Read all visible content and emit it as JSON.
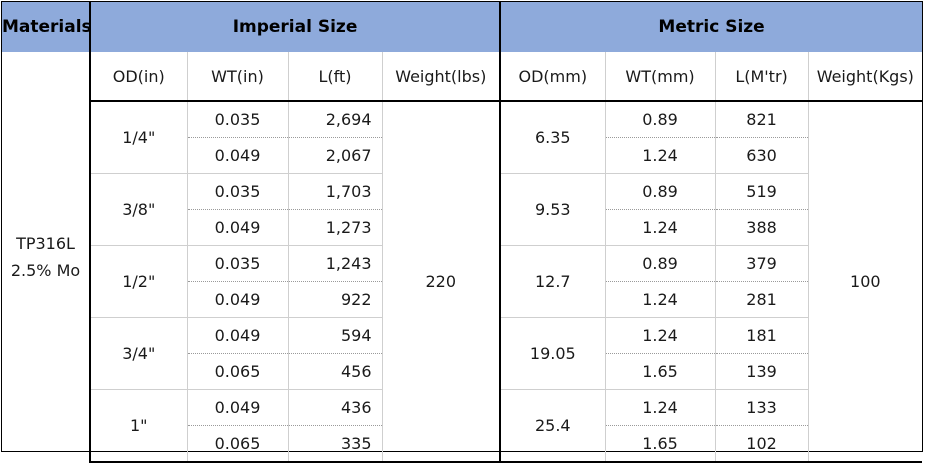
{
  "header": {
    "materials": "Materials",
    "imperial": "Imperial Size",
    "metric": "Metric Size"
  },
  "material": {
    "line1": "TP316L",
    "line2": "2.5% Mo"
  },
  "columns": {
    "od_in": "OD(in)",
    "wt_in": "WT(in)",
    "l_ft": "L(ft)",
    "weight_lbs": "Weight(lbs)",
    "od_mm": "OD(mm)",
    "wt_mm": "WT(mm)",
    "l_mtr": "L(M'tr)",
    "weight_kgs": "Weight(Kgs)"
  },
  "weight_lbs": "220",
  "weight_kgs": "100",
  "groups": [
    {
      "od_in": "1/4\"",
      "od_mm": "6.35",
      "rows": [
        {
          "wt_in": "0.035",
          "l_ft": "2,694",
          "wt_mm": "0.89",
          "l_mtr": "821"
        },
        {
          "wt_in": "0.049",
          "l_ft": "2,067",
          "wt_mm": "1.24",
          "l_mtr": "630"
        }
      ]
    },
    {
      "od_in": "3/8\"",
      "od_mm": "9.53",
      "rows": [
        {
          "wt_in": "0.035",
          "l_ft": "1,703",
          "wt_mm": "0.89",
          "l_mtr": "519"
        },
        {
          "wt_in": "0.049",
          "l_ft": "1,273",
          "wt_mm": "1.24",
          "l_mtr": "388"
        }
      ]
    },
    {
      "od_in": "1/2\"",
      "od_mm": "12.7",
      "rows": [
        {
          "wt_in": "0.035",
          "l_ft": "1,243",
          "wt_mm": "0.89",
          "l_mtr": "379"
        },
        {
          "wt_in": "0.049",
          "l_ft": "922",
          "wt_mm": "1.24",
          "l_mtr": "281"
        }
      ]
    },
    {
      "od_in": "3/4\"",
      "od_mm": "19.05",
      "rows": [
        {
          "wt_in": "0.049",
          "l_ft": "594",
          "wt_mm": "1.24",
          "l_mtr": "181"
        },
        {
          "wt_in": "0.065",
          "l_ft": "456",
          "wt_mm": "1.65",
          "l_mtr": "139"
        }
      ]
    },
    {
      "od_in": "1\"",
      "od_mm": "25.4",
      "rows": [
        {
          "wt_in": "0.049",
          "l_ft": "436",
          "wt_mm": "1.24",
          "l_mtr": "133"
        },
        {
          "wt_in": "0.065",
          "l_ft": "335",
          "wt_mm": "1.65",
          "l_mtr": "102"
        }
      ]
    }
  ]
}
